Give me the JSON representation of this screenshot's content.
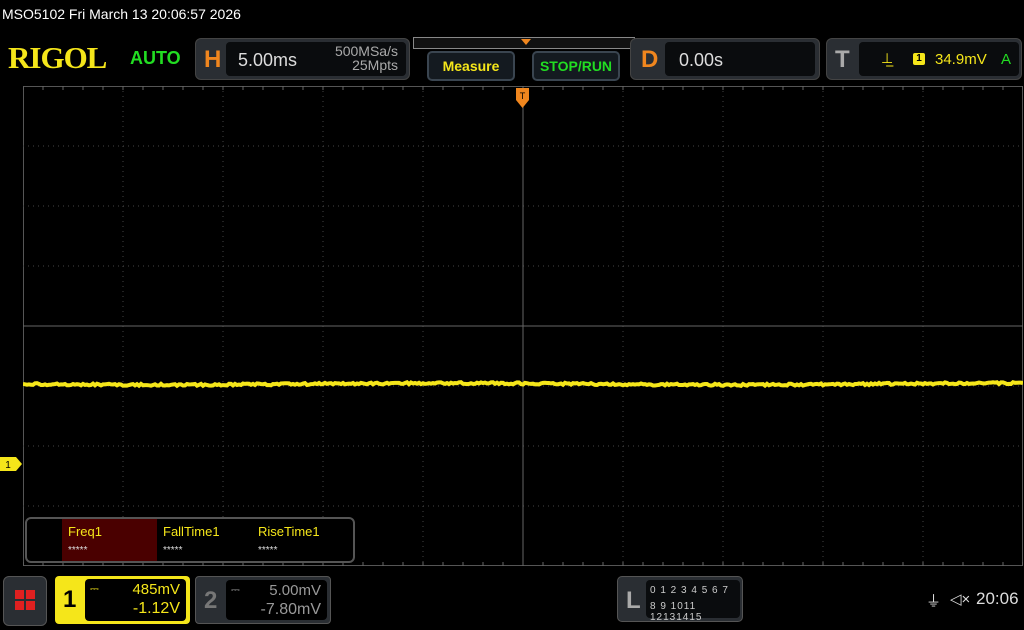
{
  "title": "MSO5102  Fri March 13 20:06:57 2026",
  "brand": "RIGOL",
  "trigger_mode": "AUTO",
  "horizontal": {
    "label": "H",
    "timebase": "5.00ms",
    "sample_rate": "500MSa/s",
    "memory_depth": "25Mpts"
  },
  "buttons": {
    "measure": "Measure",
    "stop_run": "STOP/RUN"
  },
  "delay": {
    "label": "D",
    "value": "0.00s"
  },
  "trigger": {
    "label": "T",
    "slope_icon": "rising-edge-icon",
    "source": "1",
    "level": "34.9mV",
    "mode": "A"
  },
  "channel_marker": "1",
  "measurements": [
    {
      "label": "Freq1",
      "value": "*****",
      "selected": true
    },
    {
      "label": "FallTime1",
      "value": "*****"
    },
    {
      "label": "RiseTime1",
      "value": "*****"
    }
  ],
  "channels": [
    {
      "num": "1",
      "scale": "485mV",
      "offset": "-1.12V",
      "coupling": "DC",
      "active": true,
      "color": "#f5e61a"
    },
    {
      "num": "2",
      "scale": "5.00mV",
      "offset": "-7.80mV",
      "coupling": "DC",
      "active": false,
      "color": "#888888"
    }
  ],
  "logic": {
    "label": "L",
    "row1": "0 1 2 3  4 5 6 7",
    "row2": "8 9 1011 12131415"
  },
  "status": {
    "usb_icon": "usb-icon",
    "sound_icon": "mute-icon",
    "time": "20:06"
  },
  "colors": {
    "ch1": "#f5e61a",
    "accent": "#f0861e",
    "green": "#22dd22"
  }
}
